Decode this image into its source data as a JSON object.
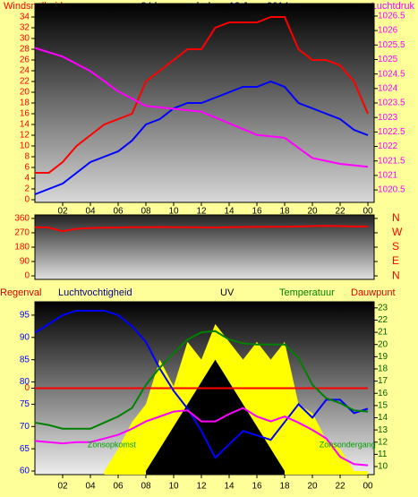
{
  "chart_data": [
    {
      "type": "line",
      "title": "24 hour graph day : 13 June 2014",
      "y_label": "Windsnelheid",
      "y2_label": "Luchtdruk",
      "x": [
        0,
        1,
        2,
        3,
        4,
        5,
        6,
        7,
        8,
        9,
        10,
        11,
        12,
        13,
        14,
        15,
        16,
        17,
        18,
        19,
        20,
        21,
        22,
        23,
        24
      ],
      "xlim": [
        0,
        24.45
      ],
      "xticks": [
        {
          "value": 2,
          "label": "02"
        },
        {
          "value": 4,
          "label": "04"
        },
        {
          "value": 6,
          "label": "06"
        },
        {
          "value": 8,
          "label": "08"
        },
        10,
        12,
        14,
        16,
        18,
        20,
        22,
        {
          "value": 24,
          "label": "00"
        }
      ],
      "ylim": [
        -0.5,
        36.5
      ],
      "yticks": [
        0,
        2,
        4,
        6,
        8,
        10,
        12,
        14,
        16,
        18,
        20,
        22,
        24,
        26,
        28,
        30,
        32,
        34
      ],
      "y2lim": [
        1020.07,
        1026.93
      ],
      "y2ticks": [
        1020.5,
        1021,
        1021.5,
        1022,
        1022.5,
        1023,
        1023.5,
        1024,
        1024.5,
        1025,
        1025.5,
        1026,
        1026.5
      ],
      "series": [
        {
          "color": "#ff0000",
          "values": [
            5,
            5,
            7,
            10,
            12,
            14,
            15,
            16,
            22,
            24,
            26,
            28,
            28,
            32,
            33,
            33,
            33,
            34,
            34,
            28,
            26,
            26,
            25,
            22,
            16
          ]
        },
        {
          "color": "#0000ff",
          "values": [
            1,
            2,
            3,
            5,
            7,
            8,
            9,
            11,
            14,
            15,
            17,
            18,
            18,
            19,
            20,
            21,
            21,
            22,
            21,
            18,
            17,
            16,
            15,
            13,
            12
          ]
        },
        {
          "color": "#ff00ff",
          "axis": "y2",
          "values": [
            1025.4,
            1025.25,
            1025.1,
            1024.85,
            1024.6,
            1024.25,
            1023.9,
            1023.65,
            1023.4,
            1023.35,
            1023.3,
            1023.25,
            1023.2,
            1023.0,
            1022.8,
            1022.6,
            1022.4,
            1022.35,
            1022.3,
            1021.95,
            1021.6,
            1021.5,
            1021.4,
            1021.35,
            1021.3
          ]
        }
      ]
    },
    {
      "type": "line",
      "x": [
        0,
        1,
        2,
        3,
        4,
        5,
        6,
        7,
        8,
        9,
        10,
        11,
        12,
        13,
        14,
        15,
        16,
        17,
        18,
        19,
        20,
        21,
        22,
        23,
        24
      ],
      "xlim": [
        0,
        24.45
      ],
      "ylim": [
        -22,
        382
      ],
      "yticks": [
        0,
        90,
        180,
        270,
        360
      ],
      "y2lim": [
        -22,
        382
      ],
      "y2ticks": [
        {
          "value": 360,
          "label": "N"
        },
        {
          "value": 270,
          "label": "W"
        },
        {
          "value": 180,
          "label": "S"
        },
        {
          "value": 90,
          "label": "E"
        },
        {
          "value": 0,
          "label": "N"
        }
      ],
      "series": [
        {
          "color": "#ff0000",
          "values": [
            305,
            303,
            280,
            295,
            300,
            302,
            303,
            305,
            305,
            306,
            305,
            305,
            304,
            303,
            305,
            306,
            307,
            308,
            308,
            310,
            312,
            313,
            312,
            310,
            310
          ]
        }
      ]
    },
    {
      "type": "line",
      "x": [
        0,
        1,
        2,
        3,
        4,
        5,
        6,
        7,
        8,
        9,
        10,
        11,
        12,
        13,
        14,
        15,
        16,
        17,
        18,
        19,
        20,
        21,
        22,
        23,
        24
      ],
      "xlim": [
        0,
        24.45
      ],
      "xticks": [
        {
          "value": 2,
          "label": "02"
        },
        {
          "value": 4,
          "label": "04"
        },
        {
          "value": 6,
          "label": "06"
        },
        {
          "value": 8,
          "label": "08"
        },
        10,
        12,
        14,
        16,
        18,
        20,
        22,
        {
          "value": 24,
          "label": "00"
        }
      ],
      "ylim": [
        59.2,
        98
      ],
      "yticks": [
        60,
        65,
        70,
        75,
        80,
        85,
        90,
        95
      ],
      "y2lim": [
        9.34,
        23.5
      ],
      "y2ticks": [
        10,
        11,
        12,
        13,
        14,
        15,
        16,
        17,
        18,
        19,
        20,
        21,
        22,
        23
      ],
      "y3lim": [
        -1,
        1
      ],
      "y3ticks": [
        0
      ],
      "series": [
        {
          "color": "#ffff00",
          "area": true,
          "values": [
            null,
            null,
            null,
            null,
            null,
            60,
            65,
            71,
            75,
            85,
            79,
            89,
            85,
            93,
            89,
            85,
            89,
            85,
            89,
            75,
            73,
            67,
            65,
            60,
            60
          ]
        },
        {
          "name": "UV",
          "color": "#000000",
          "area": true,
          "values": [
            null,
            null,
            null,
            null,
            null,
            null,
            null,
            null,
            60,
            65,
            70,
            75,
            80,
            85,
            80,
            75,
            70,
            65,
            60,
            null,
            null,
            null,
            null,
            null,
            null
          ]
        },
        {
          "name": "Regenval",
          "color": "#ff0000",
          "axis": "y3",
          "values": [
            0,
            0,
            0,
            0,
            0,
            0,
            0,
            0,
            0,
            0,
            0,
            0,
            0,
            0,
            0,
            0,
            0,
            0,
            0,
            0,
            0,
            0,
            0,
            0,
            0
          ]
        },
        {
          "name": "Luchtvochtigheid",
          "color": "#0000ff",
          "values": [
            91,
            93,
            95,
            96,
            96,
            96,
            95,
            92.5,
            89,
            83,
            78,
            74,
            69,
            63,
            66,
            69,
            68,
            67,
            71,
            75,
            72,
            76,
            76,
            73,
            74
          ]
        },
        {
          "name": "Temperatuur",
          "color": "#008000",
          "axis": "y2",
          "values": [
            13.6,
            13.4,
            13.1,
            13.1,
            13.1,
            13.6,
            14.1,
            14.8,
            16.7,
            18.1,
            19.3,
            20.4,
            21,
            21.1,
            20.4,
            20.1,
            20,
            20,
            20,
            18.9,
            16.7,
            15.6,
            15.2,
            14.6,
            14.5
          ]
        },
        {
          "name": "Dauwpunt",
          "color": "#ff00ff",
          "axis": "y2",
          "values": [
            12.1,
            12,
            11.9,
            12,
            12,
            12.3,
            12.6,
            13.1,
            13.7,
            14.1,
            14.5,
            14.6,
            13.7,
            13.7,
            14.3,
            14.8,
            14.1,
            13.7,
            14.1,
            13.6,
            13,
            12.3,
            10.8,
            10.2,
            10.1
          ]
        }
      ],
      "annotations": [
        {
          "text": "Zonsopkomst",
          "x": 3.8
        },
        {
          "text": "Zonsondergang",
          "x": 20.5
        }
      ]
    }
  ]
}
